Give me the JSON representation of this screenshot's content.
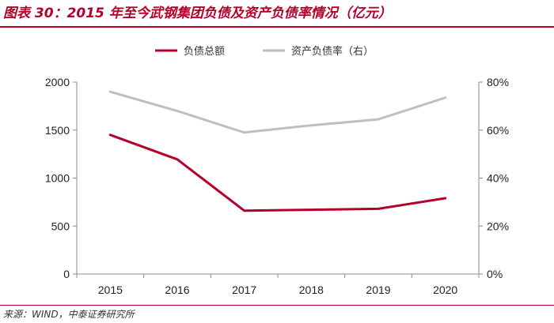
{
  "title": "图表 30：2015 年至今武钢集团负债及资产负债率情况（亿元）",
  "source": "来源：WIND，中泰证券研究所",
  "chart_data": {
    "type": "line",
    "categories": [
      "2015",
      "2016",
      "2017",
      "2018",
      "2019",
      "2020"
    ],
    "series": [
      {
        "name": "负债总额",
        "axis": "left",
        "color": "#b5002a",
        "values": [
          1450,
          1195,
          660,
          670,
          680,
          790
        ]
      },
      {
        "name": "资产负债率（右）",
        "axis": "right",
        "color": "#bfbfbf",
        "values": [
          76,
          68,
          59,
          62,
          64.5,
          73.5
        ]
      }
    ],
    "y_left": {
      "min": 0,
      "max": 2000,
      "ticks": [
        "0",
        "500",
        "1000",
        "1500",
        "2000"
      ]
    },
    "y_right": {
      "min": 0,
      "max": 80,
      "ticks": [
        "0%",
        "20%",
        "40%",
        "60%",
        "80%"
      ]
    },
    "legend": "top-center",
    "grid": false
  }
}
